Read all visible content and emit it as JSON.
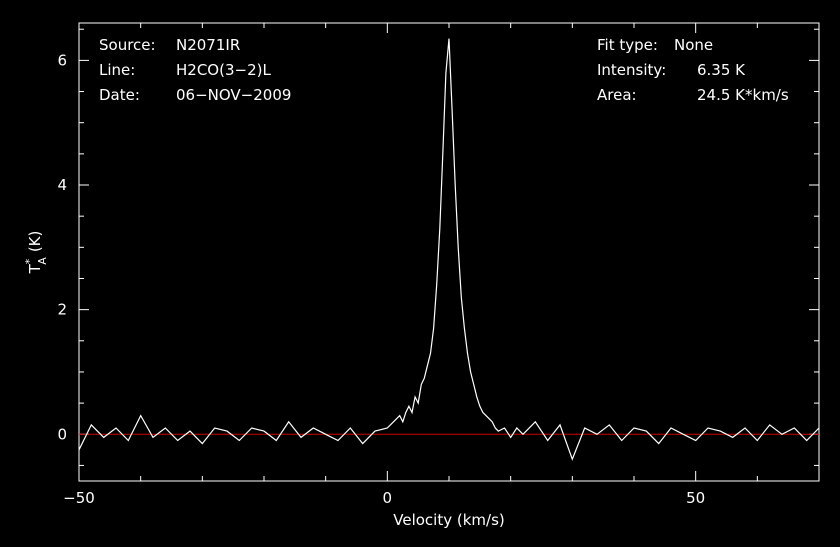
{
  "info": {
    "source_label": "Source:",
    "source_value": "N2071IR",
    "line_label": "Line:",
    "line_value": "H2CO(3−2)L",
    "date_label": "Date:",
    "date_value": "06−NOV−2009",
    "fit_label": "Fit type:",
    "fit_value": "None",
    "intensity_label": "Intensity:",
    "intensity_value": "6.35 K",
    "area_label": "Area:",
    "area_value": "24.5 K*km/s"
  },
  "colors": {
    "background": "#000000",
    "axes": "#ffffff",
    "spectrum": "#ffffff",
    "baseline": "#cc0000"
  },
  "chart_data": {
    "type": "line",
    "xlabel": "Velocity (km/s)",
    "ylabel": "T*A (K)",
    "ylabel_main": "T",
    "ylabel_sup": "*",
    "ylabel_sub": "A",
    "ylabel_unit": "(K)",
    "xlim": [
      -50,
      70
    ],
    "ylim": [
      -0.75,
      6.6
    ],
    "x_ticks": [
      -50,
      0,
      50
    ],
    "x_tick_labels": [
      "−50",
      "0",
      "50"
    ],
    "y_ticks": [
      0,
      2,
      4,
      6
    ],
    "y_tick_labels": [
      "0",
      "2",
      "4",
      "6"
    ],
    "x_minor_step": 10,
    "y_minor_step": 0.5,
    "baseline_y": 0,
    "series": [
      {
        "x": [
          -50,
          -48,
          -46,
          -44,
          -42,
          -40,
          -38,
          -36,
          -34,
          -32,
          -30,
          -28,
          -26,
          -24,
          -22,
          -20,
          -18,
          -16,
          -14,
          -12,
          -10,
          -8,
          -6,
          -4,
          -2,
          0,
          1,
          2,
          2.5,
          3,
          3.5,
          4,
          4.5,
          5,
          5.5,
          6,
          6.5,
          7,
          7.5,
          8,
          8.5,
          9,
          9.5,
          10,
          10.5,
          11,
          11.5,
          12,
          12.5,
          13,
          13.5,
          14,
          14.5,
          15,
          15.5,
          16,
          16.5,
          17,
          17.5,
          18,
          19,
          20,
          21,
          22,
          24,
          26,
          28,
          30,
          32,
          34,
          36,
          38,
          40,
          42,
          44,
          46,
          48,
          50,
          52,
          54,
          56,
          58,
          60,
          62,
          64,
          66,
          68,
          70
        ],
        "y": [
          -0.25,
          0.15,
          -0.05,
          0.1,
          -0.1,
          0.3,
          -0.05,
          0.1,
          -0.1,
          0.05,
          -0.15,
          0.1,
          0.05,
          -0.1,
          0.1,
          0.05,
          -0.1,
          0.2,
          -0.05,
          0.1,
          0.0,
          -0.1,
          0.1,
          -0.15,
          0.05,
          0.1,
          0.2,
          0.3,
          0.2,
          0.35,
          0.45,
          0.35,
          0.6,
          0.5,
          0.8,
          0.9,
          1.1,
          1.3,
          1.7,
          2.4,
          3.3,
          4.5,
          5.8,
          6.35,
          5.2,
          4.0,
          3.0,
          2.2,
          1.7,
          1.3,
          1.0,
          0.8,
          0.6,
          0.45,
          0.35,
          0.3,
          0.25,
          0.2,
          0.1,
          0.05,
          0.1,
          -0.05,
          0.1,
          0.0,
          0.2,
          -0.1,
          0.15,
          -0.4,
          0.1,
          0.0,
          0.15,
          -0.1,
          0.1,
          0.05,
          -0.15,
          0.1,
          0.0,
          -0.1,
          0.1,
          0.05,
          -0.05,
          0.1,
          -0.1,
          0.15,
          0.0,
          0.1,
          -0.1,
          0.1
        ]
      }
    ]
  }
}
